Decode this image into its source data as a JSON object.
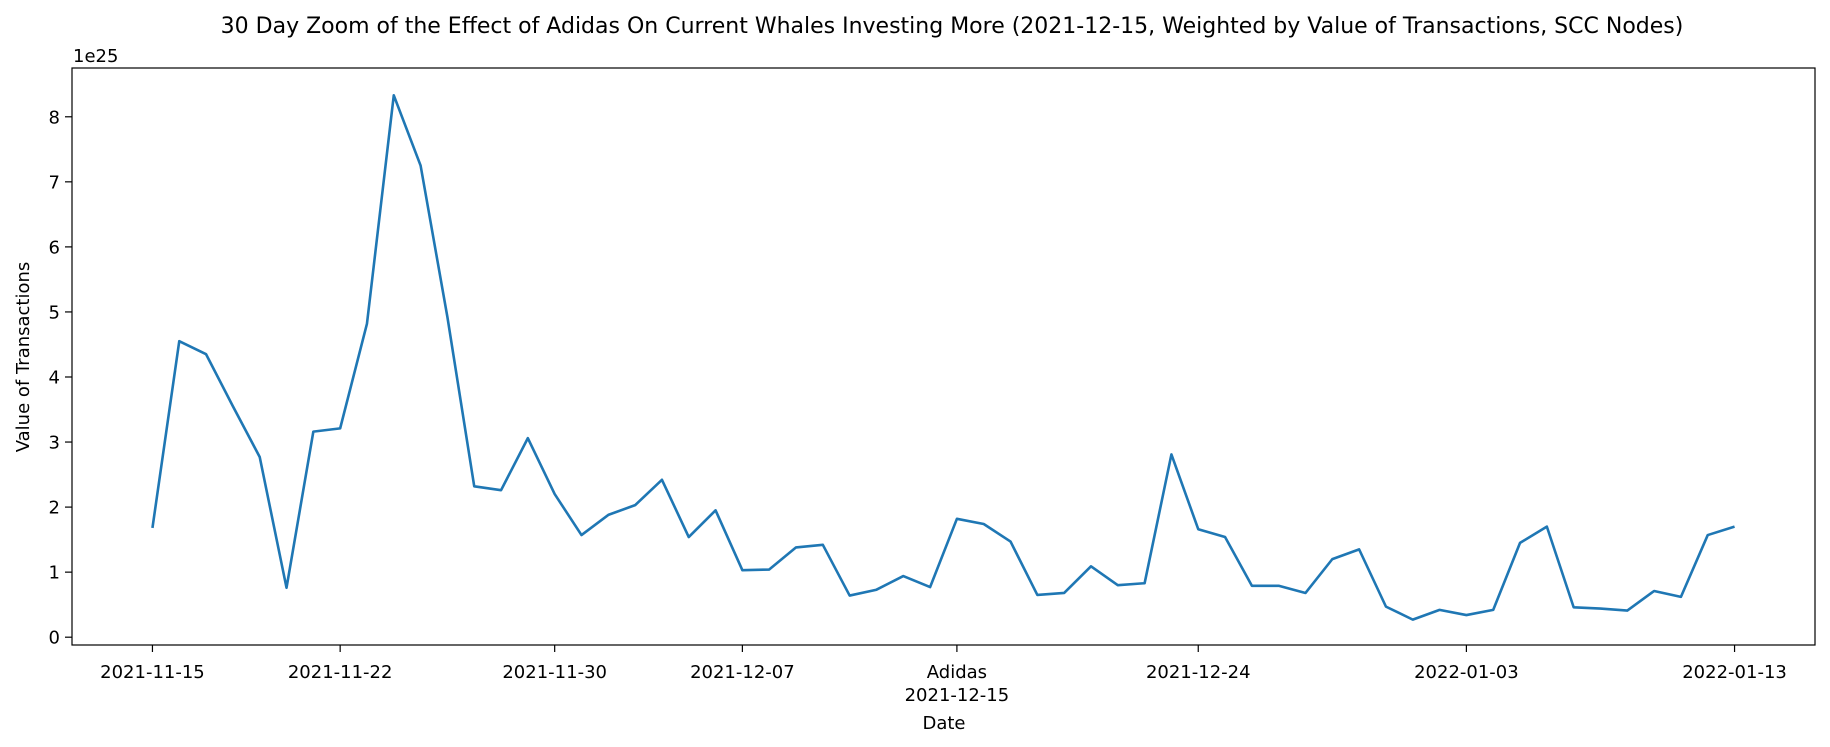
{
  "chart_data": {
    "type": "line",
    "title": "30 Day Zoom of the Effect of Adidas On Current Whales Investing More (2021-12-15, Weighted by Value of Transactions, SCC Nodes)",
    "xlabel": "Date",
    "ylabel": "Value of Transactions",
    "y_offset_label": "1e25",
    "y_scale_exponent": 25,
    "line_color": "#1f77b4",
    "grid": false,
    "legend": "none",
    "xlim": [
      "2021-11-12",
      "2022-01-16"
    ],
    "ylim": [
      -0.12,
      8.75
    ],
    "yticks": [
      0,
      1,
      2,
      3,
      4,
      5,
      6,
      7,
      8
    ],
    "xticks": [
      {
        "date": "2021-11-15",
        "label": "2021-11-15"
      },
      {
        "date": "2021-11-22",
        "label": "2021-11-22"
      },
      {
        "date": "2021-11-30",
        "label": "2021-11-30"
      },
      {
        "date": "2021-12-07",
        "label": "2021-12-07"
      },
      {
        "date": "2021-12-15",
        "label": "2021-12-15"
      },
      {
        "date": "2021-12-24",
        "label": "2021-12-24"
      },
      {
        "date": "2022-01-03",
        "label": "2022-01-03"
      },
      {
        "date": "2022-01-13",
        "label": "2022-01-13"
      }
    ],
    "event": {
      "label": "Adidas",
      "date": "2021-12-15"
    },
    "series": [
      {
        "x": [
          "2021-11-15",
          "2021-11-16",
          "2021-11-17",
          "2021-11-18",
          "2021-11-19",
          "2021-11-20",
          "2021-11-21",
          "2021-11-22",
          "2021-11-23",
          "2021-11-24",
          "2021-11-25",
          "2021-11-26",
          "2021-11-27",
          "2021-11-28",
          "2021-11-29",
          "2021-11-30",
          "2021-12-01",
          "2021-12-02",
          "2021-12-03",
          "2021-12-04",
          "2021-12-05",
          "2021-12-06",
          "2021-12-07",
          "2021-12-08",
          "2021-12-09",
          "2021-12-10",
          "2021-12-11",
          "2021-12-12",
          "2021-12-13",
          "2021-12-14",
          "2021-12-15",
          "2021-12-16",
          "2021-12-17",
          "2021-12-18",
          "2021-12-19",
          "2021-12-20",
          "2021-12-21",
          "2021-12-22",
          "2021-12-23",
          "2021-12-24",
          "2021-12-25",
          "2021-12-26",
          "2021-12-27",
          "2021-12-28",
          "2021-12-29",
          "2021-12-30",
          "2021-12-31",
          "2022-01-01",
          "2022-01-02",
          "2022-01-03",
          "2022-01-04",
          "2022-01-05",
          "2022-01-06",
          "2022-01-07",
          "2022-01-08",
          "2022-01-09",
          "2022-01-10",
          "2022-01-11",
          "2022-01-12",
          "2022-01-13"
        ],
        "y": [
          1.68,
          4.55,
          4.35,
          3.55,
          2.77,
          0.76,
          3.16,
          3.21,
          4.82,
          8.33,
          7.25,
          4.92,
          2.32,
          2.26,
          3.06,
          2.2,
          1.57,
          1.88,
          2.03,
          2.42,
          1.54,
          1.95,
          1.03,
          1.04,
          1.38,
          1.42,
          0.64,
          0.73,
          0.94,
          0.77,
          1.82,
          1.74,
          1.47,
          0.65,
          0.68,
          1.09,
          0.8,
          0.83,
          2.81,
          1.66,
          1.54,
          0.79,
          0.79,
          0.68,
          1.2,
          1.35,
          0.47,
          0.27,
          0.42,
          0.34,
          0.42,
          1.45,
          1.7,
          0.46,
          0.44,
          0.41,
          0.71,
          0.62,
          1.57,
          1.7
        ]
      }
    ]
  }
}
